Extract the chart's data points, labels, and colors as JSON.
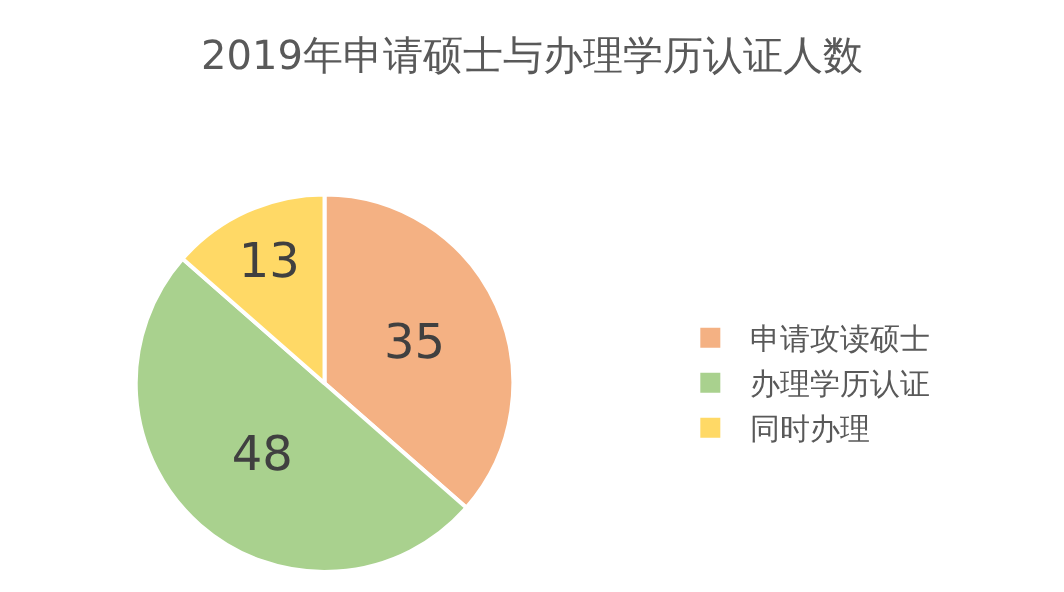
{
  "chart_data": {
    "type": "pie",
    "title": "2019年申请硕士与办理学历认证人数",
    "categories": [
      "申请攻读硕士",
      "办理学历认证",
      "同时办理"
    ],
    "values": [
      35,
      48,
      13
    ],
    "colors": [
      "#f4b183",
      "#a9d18e",
      "#ffd966"
    ],
    "data_labels": true,
    "legend": "right"
  }
}
